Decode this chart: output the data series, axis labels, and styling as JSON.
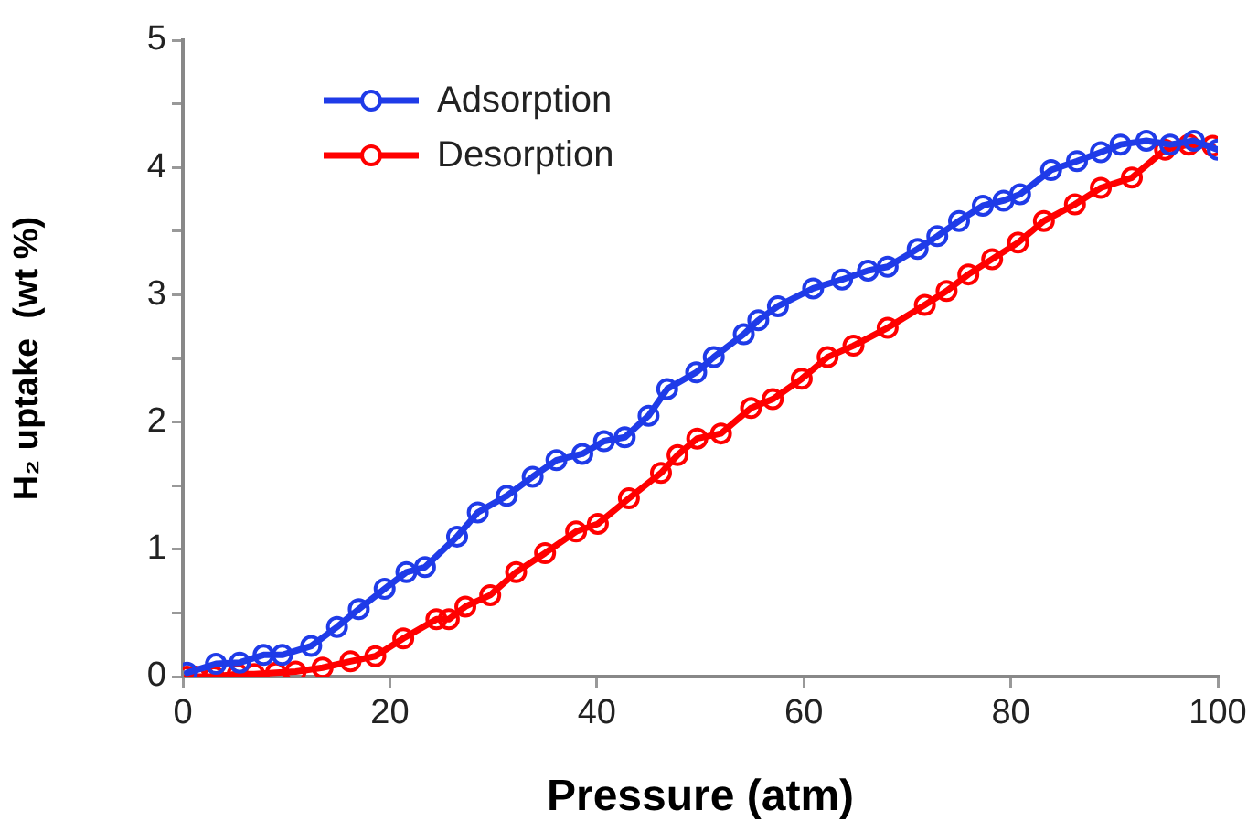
{
  "chart_data": {
    "type": "line",
    "xlabel": "Pressure (atm)",
    "ylabel": "H₂ uptake  (wt %)",
    "xlim": [
      0,
      100
    ],
    "xticks": [
      0,
      20,
      40,
      60,
      80,
      100
    ],
    "ylim": [
      0,
      5
    ],
    "yticks": [
      0,
      {
        "value": 0.5,
        "label": null
      },
      1,
      {
        "value": 1.5,
        "label": null
      },
      2,
      {
        "value": 2.5,
        "label": null
      },
      3,
      {
        "value": 3.5,
        "label": null
      },
      4,
      {
        "value": 4.5,
        "label": null
      },
      5
    ],
    "grid": false,
    "legend": "top left",
    "marker": "circle",
    "line_style": "solid",
    "series": [
      {
        "name": "Adsorption",
        "color": "#1f3be8",
        "x": [
          0.4,
          3.2,
          5.5,
          7.8,
          9.6,
          12.4,
          14.9,
          17,
          19.5,
          21.6,
          23.4,
          26.5,
          28.5,
          31.3,
          33.8,
          36.1,
          38.6,
          40.7,
          42.7,
          45,
          46.8,
          49.6,
          51.3,
          54.2,
          55.6,
          57.5,
          60.9,
          63.7,
          66.2,
          68.1,
          71,
          72.9,
          75,
          77.3,
          79.3,
          80.9,
          83.9,
          86.4,
          88.7,
          90.6,
          93.1,
          95.4,
          97.7,
          100
        ],
        "values": [
          0.03,
          0.1,
          0.11,
          0.17,
          0.17,
          0.24,
          0.39,
          0.53,
          0.69,
          0.82,
          0.86,
          1.1,
          1.29,
          1.42,
          1.57,
          1.7,
          1.75,
          1.85,
          1.88,
          2.05,
          2.26,
          2.39,
          2.51,
          2.69,
          2.8,
          2.91,
          3.05,
          3.12,
          3.19,
          3.22,
          3.36,
          3.46,
          3.58,
          3.7,
          3.74,
          3.79,
          3.98,
          4.05,
          4.12,
          4.18,
          4.21,
          4.18,
          4.21,
          4.14
        ]
      },
      {
        "name": "Desorption",
        "color": "#ff0000",
        "x": [
          0.4,
          1.2,
          2,
          3,
          5.3,
          6.9,
          9,
          10.9,
          13.5,
          16.2,
          18.6,
          21.3,
          24.5,
          25.7,
          27.3,
          29.7,
          32.2,
          35,
          38,
          40.1,
          43.1,
          46.2,
          47.8,
          49.7,
          52,
          54.9,
          57,
          59.8,
          62.3,
          64.8,
          68.1,
          71.7,
          73.8,
          75.9,
          78.2,
          80.7,
          83.2,
          86.2,
          88.7,
          91.7,
          94.9,
          97.2,
          99.5
        ],
        "values": [
          0,
          0,
          0,
          0,
          0.02,
          0.02,
          0.03,
          0.04,
          0.07,
          0.12,
          0.16,
          0.3,
          0.45,
          0.45,
          0.55,
          0.64,
          0.82,
          0.97,
          1.14,
          1.2,
          1.4,
          1.6,
          1.74,
          1.87,
          1.91,
          2.11,
          2.18,
          2.34,
          2.51,
          2.6,
          2.74,
          2.92,
          3.03,
          3.16,
          3.28,
          3.41,
          3.58,
          3.71,
          3.84,
          3.92,
          4.14,
          4.18,
          4.17
        ]
      }
    ]
  }
}
